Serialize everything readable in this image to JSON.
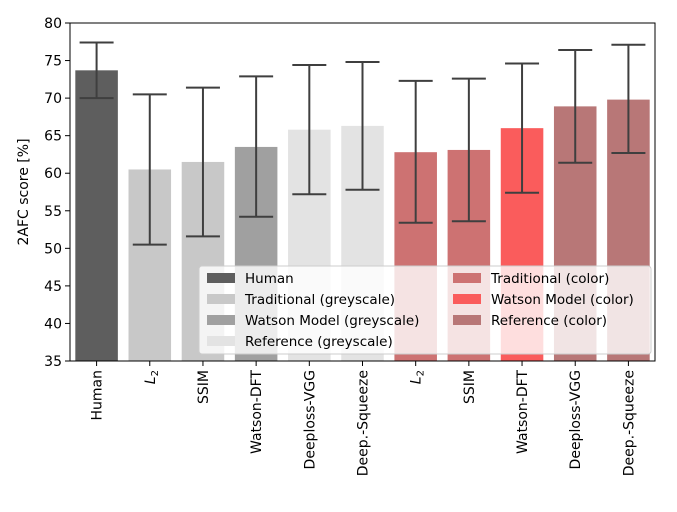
{
  "chart_data": {
    "type": "bar",
    "ylabel": "2AFC score [%]",
    "ylim": [
      35,
      80
    ],
    "yticks": [
      35,
      40,
      45,
      50,
      55,
      60,
      65,
      70,
      75,
      80
    ],
    "categories": [
      "Human",
      "L2",
      "SSIM",
      "Watson-DFT",
      "Deeploss-VGG",
      "Deep.-Squeeze",
      "L2",
      "SSIM",
      "Watson-DFT",
      "Deeploss-VGG",
      "Deep.-Squeeze"
    ],
    "series": [
      {
        "name": "Human",
        "color": "#5e5e5e",
        "points": [
          {
            "index": 0,
            "value": 73.7,
            "err_low": 70.0,
            "err_high": 77.4
          }
        ]
      },
      {
        "name": "Traditional (greyscale)",
        "color": "#c8c8c8",
        "points": [
          {
            "index": 1,
            "value": 60.5,
            "err_low": 50.5,
            "err_high": 70.5
          },
          {
            "index": 2,
            "value": 61.5,
            "err_low": 51.6,
            "err_high": 71.4
          }
        ]
      },
      {
        "name": "Watson Model (greyscale)",
        "color": "#a0a0a0",
        "points": [
          {
            "index": 3,
            "value": 63.5,
            "err_low": 54.2,
            "err_high": 72.9
          }
        ]
      },
      {
        "name": "Reference (greyscale)",
        "color": "#e3e3e3",
        "points": [
          {
            "index": 4,
            "value": 65.8,
            "err_low": 57.2,
            "err_high": 74.4
          },
          {
            "index": 5,
            "value": 66.3,
            "err_low": 57.8,
            "err_high": 74.8
          }
        ]
      },
      {
        "name": "Traditional (color)",
        "color": "#cd7272",
        "points": [
          {
            "index": 6,
            "value": 62.8,
            "err_low": 53.4,
            "err_high": 72.3
          },
          {
            "index": 7,
            "value": 63.1,
            "err_low": 53.6,
            "err_high": 72.6
          }
        ]
      },
      {
        "name": "Watson Model (color)",
        "color": "#fa5c5c",
        "points": [
          {
            "index": 8,
            "value": 66.0,
            "err_low": 57.4,
            "err_high": 74.6
          }
        ]
      },
      {
        "name": "Reference (color)",
        "color": "#b87777",
        "points": [
          {
            "index": 9,
            "value": 68.9,
            "err_low": 61.4,
            "err_high": 76.4
          },
          {
            "index": 10,
            "value": 69.8,
            "err_low": 62.7,
            "err_high": 77.1
          }
        ]
      }
    ],
    "legend_location": "lower-right",
    "grid": false
  }
}
